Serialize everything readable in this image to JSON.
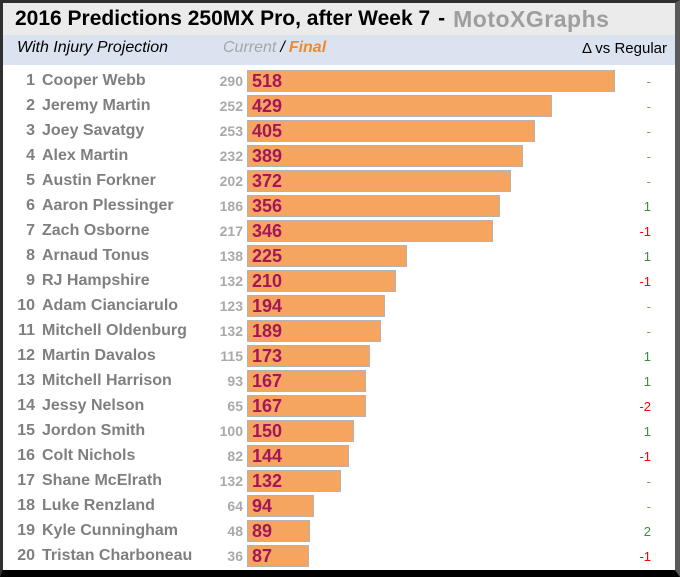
{
  "header": {
    "title": "2016 Predictions 250MX Pro, after Week 7",
    "separator": "-",
    "brand": "MotoXGraphs"
  },
  "subheader": {
    "left_label": "With Injury Projection",
    "current_label": "Current",
    "slash": "/",
    "final_label": "Final",
    "right_label": "Δ vs Regular"
  },
  "colors": {
    "bar_fill": "#f5a55f",
    "bar_border": "#b3b3b3",
    "final_value_text": "#a5155a",
    "rider_text": "#7f7f7f",
    "current_text": "#a9a9a9",
    "delta_positive": "#3d8c3d",
    "delta_negative": "#ff0000",
    "title_bg": "#ebebeb",
    "subheader_bg": "#dce3f0",
    "brand_text": "#9e9e9e",
    "final_label_orange": "#ee8a2e"
  },
  "rows": [
    {
      "rank": 1,
      "name": "Cooper Webb",
      "current": 290,
      "final": 518,
      "delta": "-"
    },
    {
      "rank": 2,
      "name": "Jeremy Martin",
      "current": 252,
      "final": 429,
      "delta": "-"
    },
    {
      "rank": 3,
      "name": "Joey Savatgy",
      "current": 253,
      "final": 405,
      "delta": "-"
    },
    {
      "rank": 4,
      "name": "Alex Martin",
      "current": 232,
      "final": 389,
      "delta": "-"
    },
    {
      "rank": 5,
      "name": "Austin Forkner",
      "current": 202,
      "final": 372,
      "delta": "-"
    },
    {
      "rank": 6,
      "name": "Aaron Plessinger",
      "current": 186,
      "final": 356,
      "delta": "1"
    },
    {
      "rank": 7,
      "name": "Zach Osborne",
      "current": 217,
      "final": 346,
      "delta": "-1"
    },
    {
      "rank": 8,
      "name": "Arnaud Tonus",
      "current": 138,
      "final": 225,
      "delta": "1"
    },
    {
      "rank": 9,
      "name": "RJ Hampshire",
      "current": 132,
      "final": 210,
      "delta": "-1"
    },
    {
      "rank": 10,
      "name": "Adam Cianciarulo",
      "current": 123,
      "final": 194,
      "delta": "-"
    },
    {
      "rank": 11,
      "name": "Mitchell Oldenburg",
      "current": 132,
      "final": 189,
      "delta": "-"
    },
    {
      "rank": 12,
      "name": "Martin Davalos",
      "current": 115,
      "final": 173,
      "delta": "1"
    },
    {
      "rank": 13,
      "name": "Mitchell Harrison",
      "current": 93,
      "final": 167,
      "delta": "1"
    },
    {
      "rank": 14,
      "name": "Jessy Nelson",
      "current": 65,
      "final": 167,
      "delta": "-2"
    },
    {
      "rank": 15,
      "name": "Jordon Smith",
      "current": 100,
      "final": 150,
      "delta": "1"
    },
    {
      "rank": 16,
      "name": "Colt Nichols",
      "current": 82,
      "final": 144,
      "delta": "-1"
    },
    {
      "rank": 17,
      "name": "Shane McElrath",
      "current": 132,
      "final": 132,
      "delta": "-"
    },
    {
      "rank": 18,
      "name": "Luke Renzland",
      "current": 64,
      "final": 94,
      "delta": "-"
    },
    {
      "rank": 19,
      "name": "Kyle Cunningham",
      "current": 48,
      "final": 89,
      "delta": "2"
    },
    {
      "rank": 20,
      "name": "Tristan Charboneau",
      "current": 36,
      "final": 87,
      "delta": "-1"
    }
  ],
  "chart_data": {
    "type": "bar",
    "orientation": "horizontal",
    "title": "2016 Predictions 250MX Pro, after Week 7 - MotoXGraphs",
    "subtitle": "With Injury Projection",
    "legend": [
      "Current",
      "Final"
    ],
    "legend_position": "top",
    "grid": false,
    "xlim": [
      0,
      520
    ],
    "categories": [
      "Cooper Webb",
      "Jeremy Martin",
      "Joey Savatgy",
      "Alex Martin",
      "Austin Forkner",
      "Aaron Plessinger",
      "Zach Osborne",
      "Arnaud Tonus",
      "RJ Hampshire",
      "Adam Cianciarulo",
      "Mitchell Oldenburg",
      "Martin Davalos",
      "Mitchell Harrison",
      "Jessy Nelson",
      "Jordon Smith",
      "Colt Nichols",
      "Shane McElrath",
      "Luke Renzland",
      "Kyle Cunningham",
      "Tristan Charboneau"
    ],
    "series": [
      {
        "name": "Current",
        "values": [
          290,
          252,
          253,
          232,
          202,
          186,
          217,
          138,
          132,
          123,
          132,
          115,
          93,
          65,
          100,
          82,
          132,
          64,
          48,
          36
        ]
      },
      {
        "name": "Final",
        "values": [
          518,
          429,
          405,
          389,
          372,
          356,
          346,
          225,
          210,
          194,
          189,
          173,
          167,
          167,
          150,
          144,
          132,
          94,
          89,
          87
        ]
      }
    ],
    "annotations": {
      "delta_vs_regular": [
        "-",
        "-",
        "-",
        "-",
        "-",
        "1",
        "-1",
        "1",
        "-1",
        "-",
        "-",
        "1",
        "1",
        "-2",
        "1",
        "-1",
        "-",
        "-",
        "2",
        "-1"
      ]
    }
  }
}
